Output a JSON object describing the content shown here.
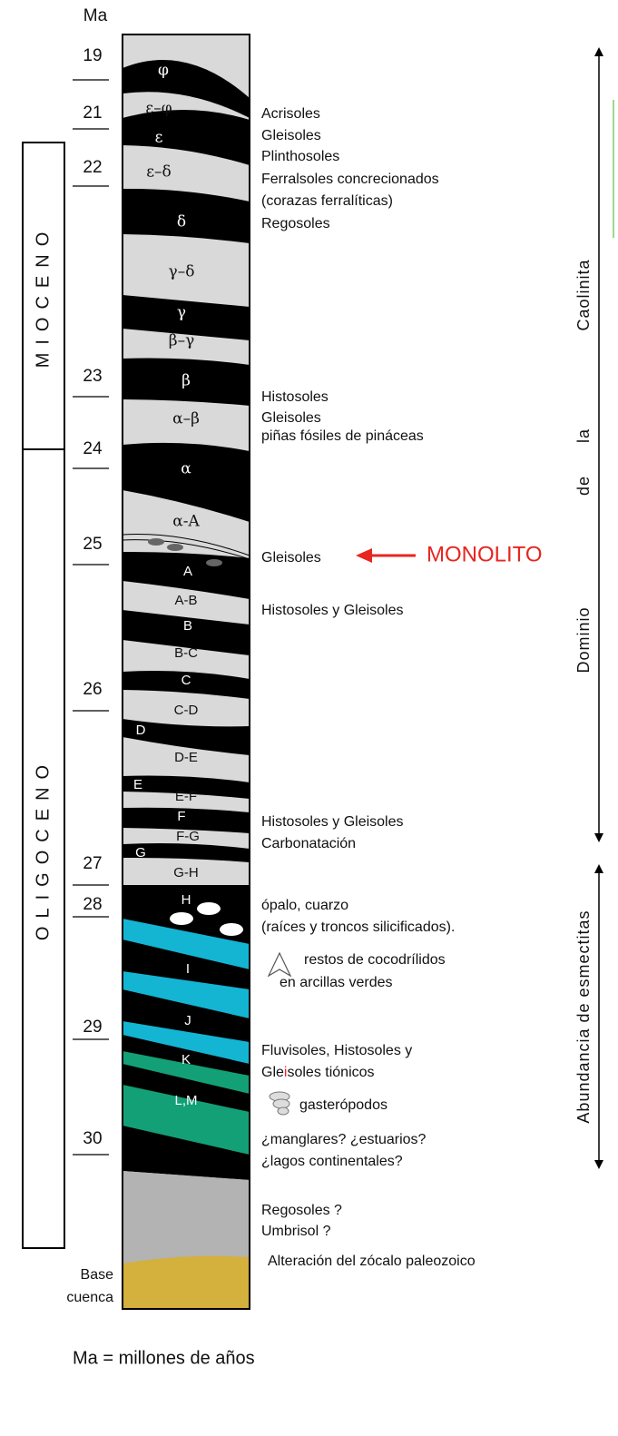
{
  "header": {
    "unit": "Ma"
  },
  "ages": [
    "19",
    "21",
    "22",
    "23",
    "24",
    "25",
    "26",
    "27",
    "28",
    "29",
    "30"
  ],
  "epochs": [
    "MIOCENO",
    "OLIGOCENO"
  ],
  "layers": [
    "φ",
    "ε–φ",
    "ε",
    "ε–δ",
    "δ",
    "γ–δ",
    "γ",
    "β–γ",
    "β",
    "α–β",
    "α",
    "α-A",
    "A",
    "A-B",
    "B",
    "B-C",
    "C",
    "C-D",
    "D",
    "D-E",
    "E",
    "E-F",
    "F",
    "F-G",
    "G",
    "G-H",
    "H",
    "I",
    "J",
    "K",
    "L,M"
  ],
  "soils": [
    "Acrisoles",
    "Gleisoles",
    "Plinthosoles",
    "Ferralsoles concrecionados",
    "(corazas ferralíticas)",
    "Regosoles",
    "Histosoles",
    "Gleisoles",
    "piñas  fósiles de pináceas",
    "Gleisoles",
    "Histosoles y Gleisoles",
    "Histosoles y Gleisoles",
    "Carbonatación",
    "ópalo, cuarzo",
    "(raíces y troncos silicificados).",
    "restos de cocodrílidos",
    "en arcillas verdes",
    "Fluvisoles, Histosoles y",
    [
      "Gle",
      "i",
      "soles tiónicos"
    ],
    "gasterópodos",
    "¿manglares? ¿estuarios?",
    "¿lagos continentales?",
    "Regosoles ?",
    "Umbrisol ?",
    "Alteración del zócalo paleozoico"
  ],
  "monolito": "MONOLITO",
  "domains": {
    "kaolinite": [
      "Dominio",
      "de",
      "la",
      "Caolinita"
    ],
    "smectite": "Abundancia de esmectitas"
  },
  "base": [
    "Base",
    "cuenca"
  ],
  "footnote": "Ma = millones de años"
}
